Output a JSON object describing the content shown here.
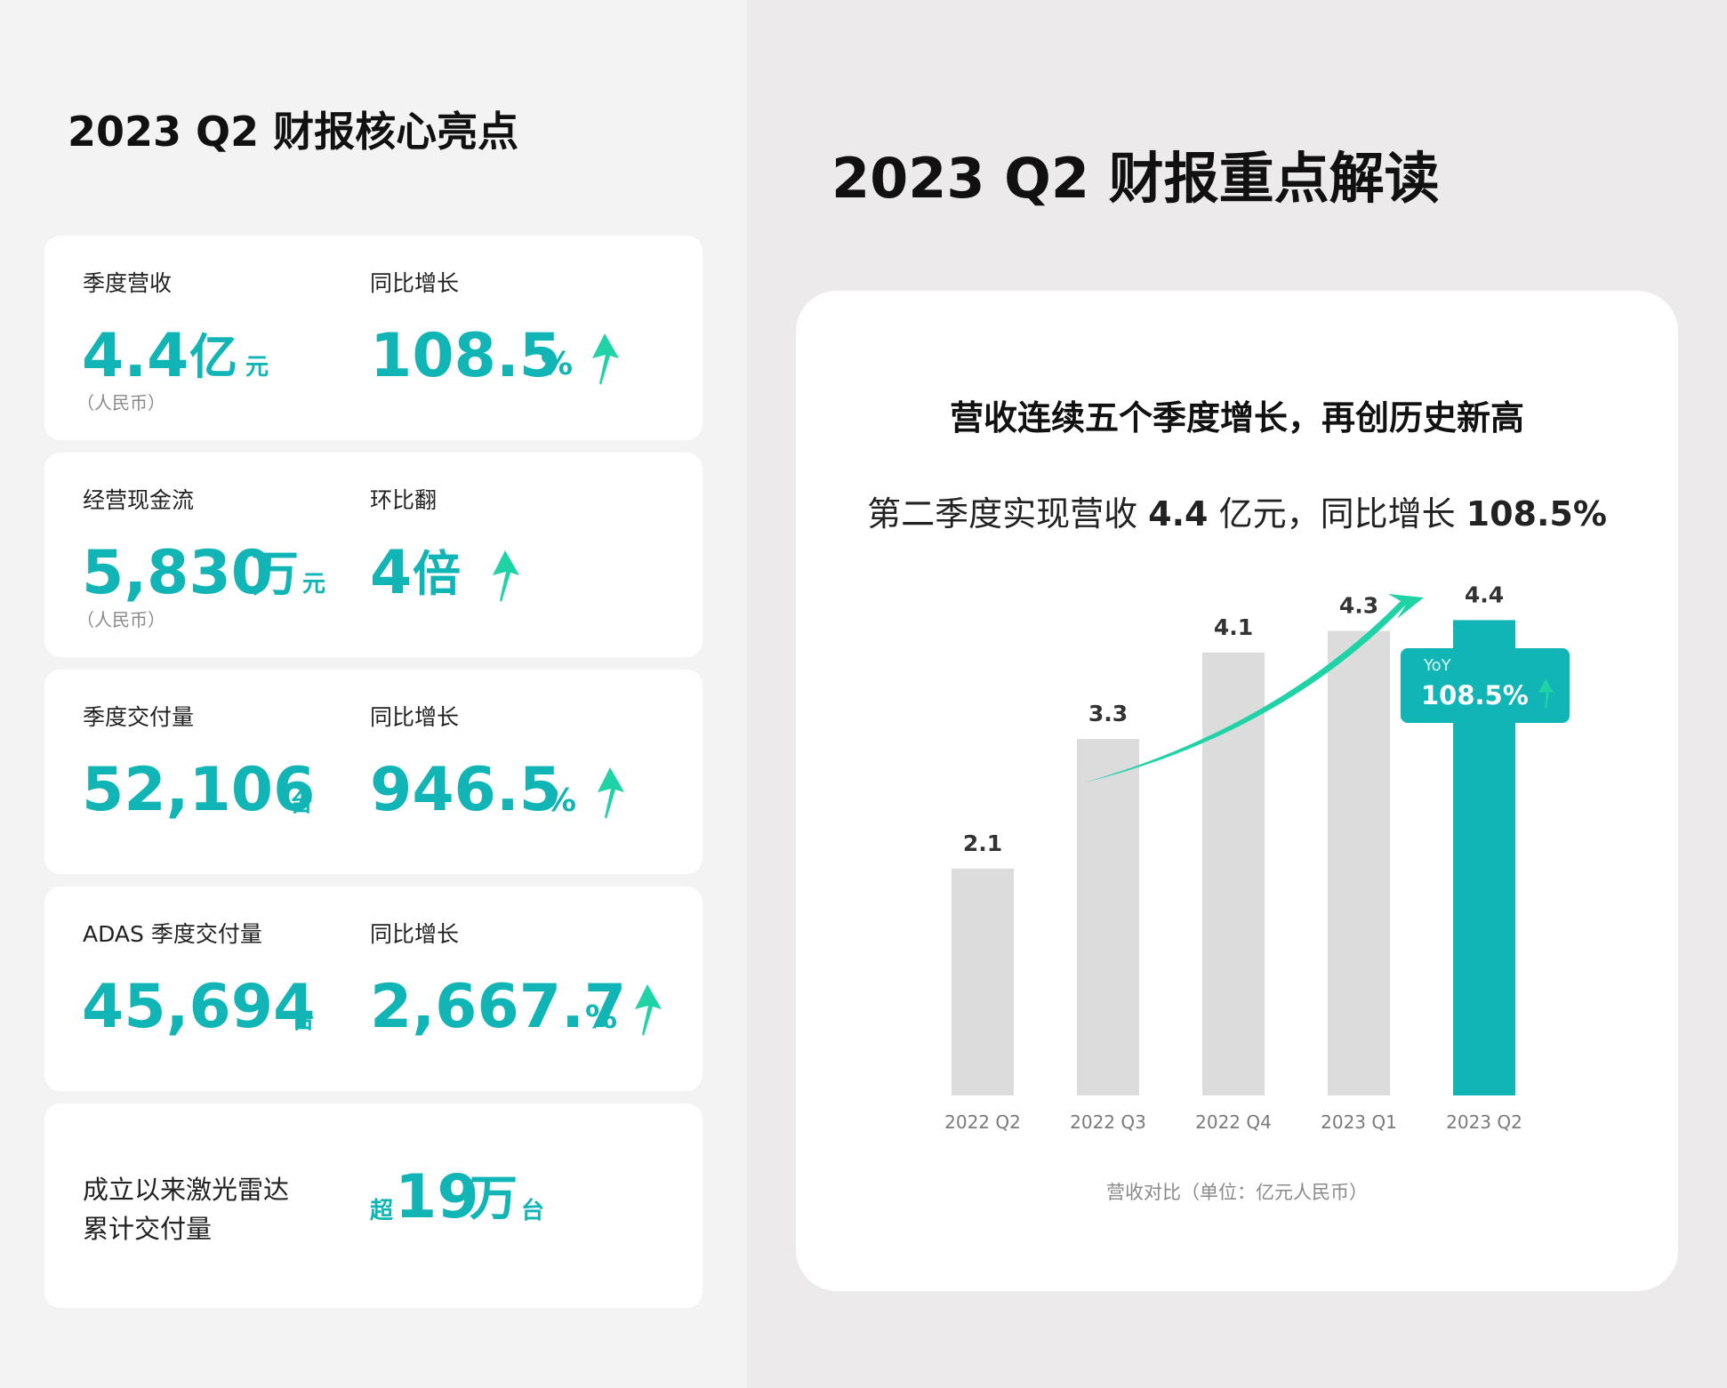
{
  "left_title": "2023 Q2 财报核心亮点",
  "right_title": "2023 Q2 财报重点解读",
  "cards": [
    {
      "left_label": "季度营收",
      "left_value": "4.4",
      "left_unit_big": "亿",
      "left_unit": "元",
      "left_note": "（人民币）",
      "right_label": "同比增长",
      "right_value": "108.5",
      "right_unit": "%"
    },
    {
      "left_label": "经营现金流",
      "left_value": "5,830",
      "left_unit_big": "万",
      "left_unit": "元",
      "left_note": "（人民币）",
      "right_label": "环比翻",
      "right_value": "4",
      "right_unit_big": "倍"
    },
    {
      "left_label": "季度交付量",
      "left_value": "52,106",
      "left_unit": "台",
      "right_label": "同比增长",
      "right_value": "946.5",
      "right_unit": "%"
    },
    {
      "left_label": "ADAS 季度交付量",
      "left_value": "45,694",
      "left_unit": "台",
      "right_label": "同比增长",
      "right_value": "2,667.7",
      "right_unit": "%"
    },
    {
      "left_label_line1": "成立以来激光雷达",
      "left_label_line2": "累计交付量",
      "right_prefix": "超",
      "right_value": "19",
      "right_unit_big": "万",
      "right_unit": "台"
    }
  ],
  "chart_data": {
    "type": "bar",
    "title": "营收连续五个季度增长，再创历史新高",
    "subtitle_parts": [
      "第二季度实现营收 ",
      "4.4",
      " 亿元，同比增长 ",
      "108.5%"
    ],
    "categories": [
      "2022 Q2",
      "2022 Q3",
      "2022 Q4",
      "2023 Q1",
      "2023 Q2"
    ],
    "values": [
      2.1,
      3.3,
      4.1,
      4.3,
      4.4
    ],
    "highlight_index": 4,
    "ylim": [
      0,
      4.4
    ],
    "callout": {
      "label": "YoY",
      "value": "108.5%"
    },
    "caption": "营收对比（单位：亿元人民币）",
    "colors": {
      "bar": "#dcdcdc",
      "highlight": "#12b5b5",
      "arrow": "#1fd3a6",
      "label": "#333333",
      "tick": "#7a7a7a"
    }
  }
}
